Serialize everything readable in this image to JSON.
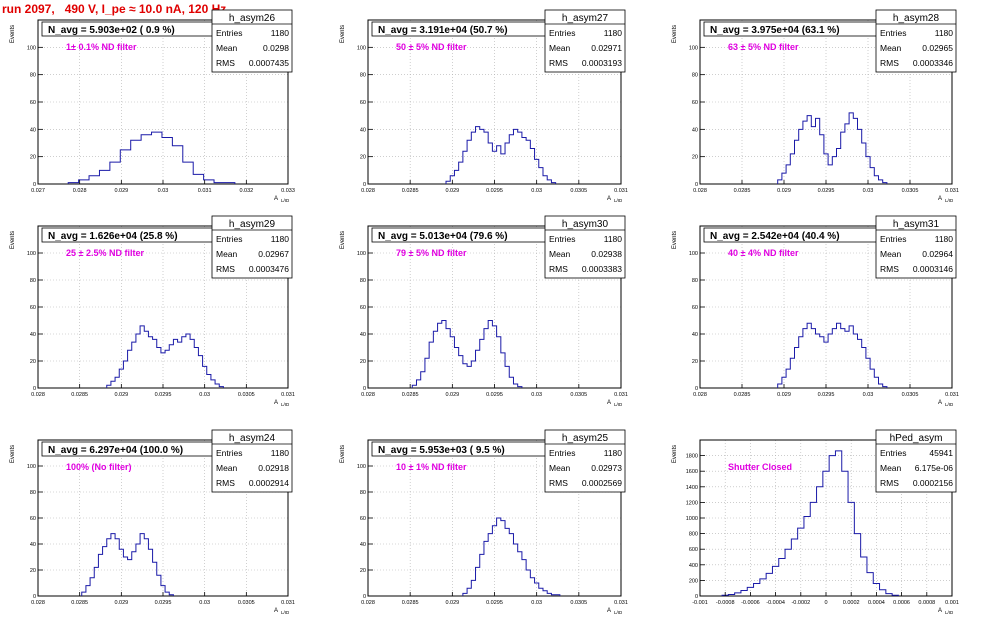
{
  "page_title": "run 2097,   490 V, I_pe ≈ 10.0 nA, 120 Hz",
  "axis_labels": {
    "y": "Events",
    "x": "A",
    "x_sub": "L/ID"
  },
  "colors": {
    "hist": "#1a1aa8",
    "note": "#e000e0",
    "title": "#e00000",
    "grid": "#b0b0b0"
  },
  "stat_labels": {
    "entries": "Entries",
    "mean": "Mean",
    "rms": "RMS"
  },
  "chart_data": [
    {
      "type": "histogram",
      "name": "h_asym26",
      "navg": "N_avg = 5.903e+02 ( 0.9 %)",
      "note": "1± 0.1% ND filter",
      "entries": "1180",
      "mean": "0.0298",
      "rms": "0.0007435",
      "xlim": [
        0.027,
        0.033
      ],
      "xticks": [
        0.027,
        0.028,
        0.029,
        0.03,
        0.031,
        0.032,
        0.033
      ],
      "xticklabels": [
        "0.027",
        "0.028",
        "0.029",
        "0.03",
        "0.031",
        "0.032",
        "0.033"
      ],
      "ylim": [
        0,
        120
      ],
      "yticks": [
        0,
        20,
        40,
        60,
        80,
        100
      ],
      "centers": [
        0.02785,
        0.0281,
        0.02835,
        0.0286,
        0.02885,
        0.0291,
        0.02935,
        0.0296,
        0.02985,
        0.0301,
        0.03035,
        0.0306,
        0.03085,
        0.0311,
        0.03135,
        0.0316
      ],
      "counts": [
        1,
        3,
        6,
        10,
        16,
        25,
        32,
        36,
        38,
        34,
        28,
        16,
        7,
        3,
        1,
        1
      ],
      "grid": true
    },
    {
      "type": "histogram",
      "name": "h_asym27",
      "navg": "N_avg = 3.191e+04 (50.7 %)",
      "note": "50 ± 5% ND filter",
      "entries": "1180",
      "mean": "0.02971",
      "rms": "0.0003193",
      "xlim": [
        0.028,
        0.031
      ],
      "xticks": [
        0.028,
        0.0285,
        0.029,
        0.0295,
        0.03,
        0.0305,
        0.031
      ],
      "xticklabels": [
        "0.028",
        "0.0285",
        "0.029",
        "0.0295",
        "0.03",
        "0.0305",
        "0.031"
      ],
      "ylim": [
        0,
        120
      ],
      "yticks": [
        0,
        20,
        40,
        60,
        80,
        100
      ],
      "centers": [
        0.02895,
        0.029,
        0.02905,
        0.0291,
        0.02915,
        0.0292,
        0.02925,
        0.0293,
        0.02935,
        0.0294,
        0.02945,
        0.0295,
        0.02955,
        0.0296,
        0.02965,
        0.0297,
        0.02975,
        0.0298,
        0.02985,
        0.0299,
        0.02995,
        0.03,
        0.03005,
        0.0301,
        0.03015,
        0.0302
      ],
      "counts": [
        2,
        6,
        10,
        16,
        24,
        32,
        38,
        42,
        40,
        38,
        30,
        24,
        28,
        22,
        30,
        36,
        40,
        38,
        34,
        32,
        26,
        18,
        12,
        6,
        3,
        1
      ],
      "grid": true
    },
    {
      "type": "histogram",
      "name": "h_asym28",
      "navg": "N_avg = 3.975e+04 (63.1 %)",
      "note": "63 ± 5% ND filter",
      "entries": "1180",
      "mean": "0.02965",
      "rms": "0.0003346",
      "xlim": [
        0.028,
        0.031
      ],
      "xticks": [
        0.028,
        0.0285,
        0.029,
        0.0295,
        0.03,
        0.0305,
        0.031
      ],
      "xticklabels": [
        "0.028",
        "0.0285",
        "0.029",
        "0.0295",
        "0.03",
        "0.0305",
        "0.031"
      ],
      "ylim": [
        0,
        120
      ],
      "yticks": [
        0,
        20,
        40,
        60,
        80,
        100
      ],
      "centers": [
        0.02895,
        0.029,
        0.02905,
        0.0291,
        0.02915,
        0.0292,
        0.02925,
        0.0293,
        0.02935,
        0.0294,
        0.02945,
        0.0295,
        0.02955,
        0.0296,
        0.02965,
        0.0297,
        0.02975,
        0.0298,
        0.02985,
        0.0299,
        0.02995,
        0.03,
        0.03005,
        0.0301,
        0.03015,
        0.0302
      ],
      "counts": [
        3,
        8,
        14,
        22,
        32,
        40,
        46,
        50,
        42,
        48,
        36,
        22,
        14,
        20,
        26,
        38,
        44,
        52,
        48,
        40,
        30,
        20,
        12,
        6,
        3,
        1
      ],
      "grid": true
    },
    {
      "type": "histogram",
      "name": "h_asym29",
      "navg": "N_avg = 1.626e+04 (25.8 %)",
      "note": "25 ± 2.5% ND filter",
      "entries": "1180",
      "mean": "0.02967",
      "rms": "0.0003476",
      "xlim": [
        0.028,
        0.031
      ],
      "xticks": [
        0.028,
        0.0285,
        0.029,
        0.0295,
        0.03,
        0.0305,
        0.031
      ],
      "xticklabels": [
        "0.028",
        "0.0285",
        "0.029",
        "0.0295",
        "0.03",
        "0.0305",
        "0.031"
      ],
      "ylim": [
        0,
        120
      ],
      "yticks": [
        0,
        20,
        40,
        60,
        80,
        100
      ],
      "centers": [
        0.02885,
        0.0289,
        0.02895,
        0.029,
        0.02905,
        0.0291,
        0.02915,
        0.0292,
        0.02925,
        0.0293,
        0.02935,
        0.0294,
        0.02945,
        0.0295,
        0.02955,
        0.0296,
        0.02965,
        0.0297,
        0.02975,
        0.0298,
        0.02985,
        0.0299,
        0.02995,
        0.03,
        0.03005,
        0.0301,
        0.03015,
        0.0302
      ],
      "counts": [
        2,
        5,
        8,
        14,
        20,
        28,
        34,
        40,
        46,
        42,
        38,
        36,
        30,
        26,
        28,
        32,
        36,
        34,
        38,
        40,
        36,
        30,
        24,
        16,
        10,
        6,
        3,
        1
      ],
      "grid": true
    },
    {
      "type": "histogram",
      "name": "h_asym30",
      "navg": "N_avg = 5.013e+04 (79.6 %)",
      "note": "79 ± 5% ND filter",
      "entries": "1180",
      "mean": "0.02938",
      "rms": "0.0003383",
      "xlim": [
        0.028,
        0.031
      ],
      "xticks": [
        0.028,
        0.0285,
        0.029,
        0.0295,
        0.03,
        0.0305,
        0.031
      ],
      "xticklabels": [
        "0.028",
        "0.0285",
        "0.029",
        "0.0295",
        "0.03",
        "0.0305",
        "0.031"
      ],
      "ylim": [
        0,
        120
      ],
      "yticks": [
        0,
        20,
        40,
        60,
        80,
        100
      ],
      "centers": [
        0.02855,
        0.0286,
        0.02865,
        0.0287,
        0.02875,
        0.0288,
        0.02885,
        0.0289,
        0.02895,
        0.029,
        0.02905,
        0.0291,
        0.02915,
        0.0292,
        0.02925,
        0.0293,
        0.02935,
        0.0294,
        0.02945,
        0.0295,
        0.02955,
        0.0296,
        0.02965,
        0.0297,
        0.02975,
        0.0298
      ],
      "counts": [
        2,
        6,
        12,
        22,
        34,
        42,
        48,
        50,
        44,
        38,
        30,
        24,
        18,
        16,
        20,
        28,
        36,
        44,
        50,
        46,
        38,
        26,
        16,
        8,
        3,
        1
      ],
      "grid": true
    },
    {
      "type": "histogram",
      "name": "h_asym31",
      "navg": "N_avg = 2.542e+04 (40.4 %)",
      "note": "40 ± 4% ND filter",
      "entries": "1180",
      "mean": "0.02964",
      "rms": "0.0003146",
      "xlim": [
        0.028,
        0.031
      ],
      "xticks": [
        0.028,
        0.0285,
        0.029,
        0.0295,
        0.03,
        0.0305,
        0.031
      ],
      "xticklabels": [
        "0.028",
        "0.0285",
        "0.029",
        "0.0295",
        "0.03",
        "0.0305",
        "0.031"
      ],
      "ylim": [
        0,
        120
      ],
      "yticks": [
        0,
        20,
        40,
        60,
        80,
        100
      ],
      "centers": [
        0.02895,
        0.029,
        0.02905,
        0.0291,
        0.02915,
        0.0292,
        0.02925,
        0.0293,
        0.02935,
        0.0294,
        0.02945,
        0.0295,
        0.02955,
        0.0296,
        0.02965,
        0.0297,
        0.02975,
        0.0298,
        0.02985,
        0.0299,
        0.02995,
        0.03,
        0.03005,
        0.0301,
        0.03015,
        0.0302
      ],
      "counts": [
        3,
        8,
        14,
        22,
        30,
        38,
        44,
        48,
        44,
        40,
        38,
        34,
        40,
        44,
        48,
        44,
        42,
        46,
        40,
        36,
        30,
        22,
        14,
        8,
        3,
        1
      ],
      "grid": true
    },
    {
      "type": "histogram",
      "name": "h_asym24",
      "navg": "N_avg = 6.297e+04 (100.0 %)",
      "note": "100% (No filter)",
      "entries": "1180",
      "mean": "0.02918",
      "rms": "0.0002914",
      "xlim": [
        0.028,
        0.031
      ],
      "xticks": [
        0.028,
        0.0285,
        0.029,
        0.0295,
        0.03,
        0.0305,
        0.031
      ],
      "xticklabels": [
        "0.028",
        "0.0285",
        "0.029",
        "0.0295",
        "0.03",
        "0.0305",
        "0.031"
      ],
      "ylim": [
        0,
        120
      ],
      "yticks": [
        0,
        20,
        40,
        60,
        80,
        100
      ],
      "centers": [
        0.02855,
        0.0286,
        0.02865,
        0.0287,
        0.02875,
        0.0288,
        0.02885,
        0.0289,
        0.02895,
        0.029,
        0.02905,
        0.0291,
        0.02915,
        0.0292,
        0.02925,
        0.0293,
        0.02935,
        0.0294,
        0.02945,
        0.0295,
        0.02955,
        0.0296
      ],
      "counts": [
        3,
        8,
        14,
        22,
        32,
        38,
        44,
        48,
        44,
        36,
        30,
        28,
        34,
        40,
        48,
        44,
        36,
        26,
        16,
        8,
        3,
        1
      ],
      "grid": true
    },
    {
      "type": "histogram",
      "name": "h_asym25",
      "navg": "N_avg = 5.953e+03 ( 9.5 %)",
      "note": "10 ± 1% ND filter",
      "entries": "1180",
      "mean": "0.02973",
      "rms": "0.0002569",
      "xlim": [
        0.028,
        0.031
      ],
      "xticks": [
        0.028,
        0.0285,
        0.029,
        0.0295,
        0.03,
        0.0305,
        0.031
      ],
      "xticklabels": [
        "0.028",
        "0.0285",
        "0.029",
        "0.0295",
        "0.03",
        "0.0305",
        "0.031"
      ],
      "ylim": [
        0,
        120
      ],
      "yticks": [
        0,
        20,
        40,
        60,
        80,
        100
      ],
      "centers": [
        0.02915,
        0.0292,
        0.02925,
        0.0293,
        0.02935,
        0.0294,
        0.02945,
        0.0295,
        0.02955,
        0.0296,
        0.02965,
        0.0297,
        0.02975,
        0.0298,
        0.02985,
        0.0299,
        0.02995,
        0.03,
        0.03005,
        0.0301,
        0.03015,
        0.0302,
        0.03025
      ],
      "counts": [
        2,
        6,
        12,
        22,
        32,
        42,
        48,
        54,
        60,
        58,
        52,
        48,
        40,
        34,
        28,
        20,
        14,
        10,
        6,
        4,
        2,
        1,
        1
      ],
      "grid": true
    },
    {
      "type": "histogram",
      "name": "hPed_asym",
      "navg": "",
      "note": "Shutter Closed",
      "entries": "45941",
      "mean": "6.175e-06",
      "rms": "0.0002156",
      "xlim": [
        -0.001,
        0.001
      ],
      "xticks": [
        -0.001,
        -0.0008,
        -0.0006,
        -0.0004,
        -0.0002,
        0,
        0.0002,
        0.0004,
        0.0006,
        0.0008,
        0.001
      ],
      "xticklabels": [
        "-0.001",
        "-0.0008",
        "-0.0006",
        "-0.0004",
        "-0.0002",
        "0",
        "0.0002",
        "0.0004",
        "0.0006",
        "0.0008",
        "0.001"
      ],
      "ylim": [
        0,
        2000
      ],
      "yticks": [
        0,
        200,
        400,
        600,
        800,
        1000,
        1200,
        1400,
        1600,
        1800
      ],
      "centers": [
        -0.0008,
        -0.00075,
        -0.0007,
        -0.00065,
        -0.0006,
        -0.00055,
        -0.0005,
        -0.00045,
        -0.0004,
        -0.00035,
        -0.0003,
        -0.00025,
        -0.0002,
        -0.00015,
        -0.0001,
        -5e-05,
        0,
        5e-05,
        0.0001,
        0.00015,
        0.0002,
        0.00025,
        0.0003,
        0.00035,
        0.0004,
        0.00045,
        0.0005,
        0.00055
      ],
      "counts": [
        10,
        20,
        40,
        70,
        110,
        160,
        220,
        290,
        380,
        480,
        600,
        730,
        870,
        1020,
        1200,
        1400,
        1600,
        1800,
        1860,
        1600,
        1200,
        800,
        500,
        300,
        160,
        80,
        30,
        10
      ],
      "grid": true
    }
  ]
}
